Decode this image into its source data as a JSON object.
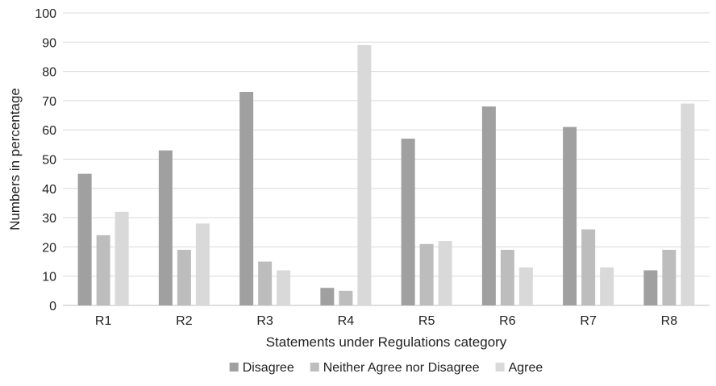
{
  "chart_data": {
    "type": "bar",
    "categories": [
      "R1",
      "R2",
      "R3",
      "R4",
      "R5",
      "R6",
      "R7",
      "R8"
    ],
    "series": [
      {
        "name": "Disagree",
        "color": "#a0a0a0",
        "values": [
          45,
          53,
          73,
          6,
          57,
          68,
          61,
          12
        ]
      },
      {
        "name": "Neither Agree nor Disagree",
        "color": "#bdbdbd",
        "values": [
          24,
          19,
          15,
          5,
          21,
          19,
          26,
          19
        ]
      },
      {
        "name": "Agree",
        "color": "#d9d9d9",
        "values": [
          32,
          28,
          12,
          89,
          22,
          13,
          13,
          69
        ]
      }
    ],
    "title": "",
    "xlabel": "Statements under Regulations category",
    "ylabel": "Numbers in percentage",
    "ylim": [
      0,
      100
    ],
    "yticks": [
      0,
      10,
      20,
      30,
      40,
      50,
      60,
      70,
      80,
      90,
      100
    ],
    "grid": true,
    "legend": "bottom-center",
    "colors": {
      "grid": "#d9d9d9",
      "axis": "#bfbfbf",
      "text": "#222222"
    }
  }
}
